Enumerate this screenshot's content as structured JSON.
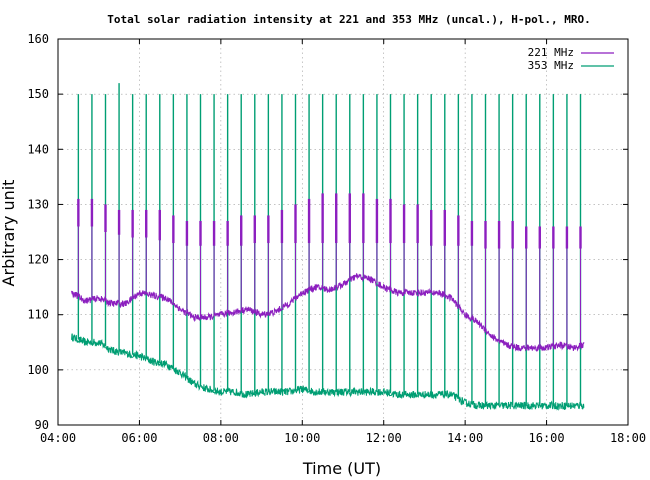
{
  "chart_data": {
    "type": "line",
    "title": "Total solar radiation intensity at 221 and 353 MHz (uncal.), H-pol., MRO.",
    "xlabel": "Time (UT)",
    "ylabel": "Arbitrary unit",
    "xlim": [
      "04:00",
      "18:00"
    ],
    "ylim": [
      90,
      160
    ],
    "x_ticks": [
      "04:00",
      "06:00",
      "08:00",
      "10:00",
      "12:00",
      "14:00",
      "16:00",
      "18:00"
    ],
    "y_ticks": [
      "90",
      "100",
      "110",
      "120",
      "130",
      "140",
      "150",
      "160"
    ],
    "grid": true,
    "legend_position": "top-right",
    "spike_times": [
      "04:30",
      "04:50",
      "05:10",
      "05:30",
      "05:50",
      "06:10",
      "06:30",
      "06:50",
      "07:10",
      "07:30",
      "07:50",
      "08:10",
      "08:30",
      "08:50",
      "09:10",
      "09:30",
      "09:50",
      "10:10",
      "10:30",
      "10:50",
      "11:10",
      "11:30",
      "11:50",
      "12:10",
      "12:30",
      "12:50",
      "13:10",
      "13:30",
      "13:50",
      "14:10",
      "14:30",
      "14:50",
      "15:10",
      "15:30",
      "15:50",
      "16:10",
      "16:30",
      "16:50"
    ],
    "series": [
      {
        "name": "221 MHz",
        "color": "#8c1fbf",
        "x": [
          "04:20",
          "04:40",
          "05:00",
          "05:20",
          "05:40",
          "06:00",
          "06:20",
          "06:40",
          "07:00",
          "07:20",
          "07:40",
          "08:00",
          "08:20",
          "08:40",
          "09:00",
          "09:20",
          "09:40",
          "10:00",
          "10:20",
          "10:40",
          "11:00",
          "11:20",
          "11:40",
          "12:00",
          "12:20",
          "12:40",
          "13:00",
          "13:20",
          "13:40",
          "14:00",
          "14:20",
          "14:40",
          "15:00",
          "15:20",
          "15:40",
          "16:00",
          "16:20",
          "16:40",
          "16:55"
        ],
        "values": [
          114,
          112.5,
          113,
          112,
          112,
          114,
          113.5,
          113,
          111,
          109.5,
          109.5,
          110,
          110.5,
          111,
          110,
          110.5,
          112,
          114,
          115,
          114.5,
          115.5,
          117,
          116.5,
          115,
          114,
          114,
          114,
          114,
          113,
          110,
          108.5,
          106,
          104.5,
          104,
          104,
          104,
          104.5,
          104,
          104.5
        ],
        "spike_high": [
          131,
          131,
          130,
          129,
          129,
          129,
          129,
          128,
          127,
          127,
          127,
          127,
          128,
          128,
          128,
          129,
          130,
          131,
          132,
          132,
          132,
          132,
          131,
          131,
          130,
          130,
          129,
          129,
          128,
          127,
          127,
          127,
          127,
          126,
          126,
          126,
          126,
          126
        ],
        "spike_low": [
          126,
          126,
          125,
          124.5,
          124,
          124,
          123.5,
          123,
          122.5,
          122.5,
          122.5,
          122.5,
          122.5,
          123,
          123,
          123,
          123,
          123,
          123,
          123,
          123,
          123,
          123,
          123,
          123,
          123,
          122.5,
          122.5,
          122.5,
          122.5,
          122,
          122,
          122,
          122,
          122,
          122,
          122,
          122
        ]
      },
      {
        "name": "353 MHz",
        "color": "#009e73",
        "x": [
          "04:20",
          "04:40",
          "05:00",
          "05:20",
          "05:40",
          "06:00",
          "06:20",
          "06:40",
          "07:00",
          "07:20",
          "07:40",
          "08:00",
          "08:20",
          "08:40",
          "09:00",
          "09:20",
          "09:40",
          "10:00",
          "10:20",
          "10:40",
          "11:00",
          "11:20",
          "11:40",
          "12:00",
          "12:20",
          "12:40",
          "13:00",
          "13:20",
          "13:40",
          "14:00",
          "14:20",
          "14:40",
          "15:00",
          "15:20",
          "15:40",
          "16:00",
          "16:20",
          "16:40",
          "16:55"
        ],
        "values": [
          106,
          105,
          105,
          103.5,
          103,
          102.5,
          101.5,
          101,
          99.5,
          97.5,
          96.5,
          96,
          96,
          95.5,
          96,
          96,
          96,
          96.5,
          96,
          96,
          96,
          96,
          96,
          96,
          95.5,
          95.5,
          95.5,
          95.5,
          95.5,
          94,
          93.5,
          93.5,
          93.5,
          93.5,
          93.5,
          93.5,
          93.5,
          93.5,
          93.5
        ],
        "spike_high": [
          150,
          150,
          150,
          152,
          150,
          150,
          150,
          150,
          150,
          150,
          150,
          150,
          150,
          150,
          150,
          150,
          150,
          150,
          150,
          150,
          150,
          150,
          150,
          150,
          150,
          150,
          150,
          150,
          150,
          150,
          150,
          150,
          150,
          150,
          150,
          150,
          150,
          150
        ]
      }
    ]
  }
}
